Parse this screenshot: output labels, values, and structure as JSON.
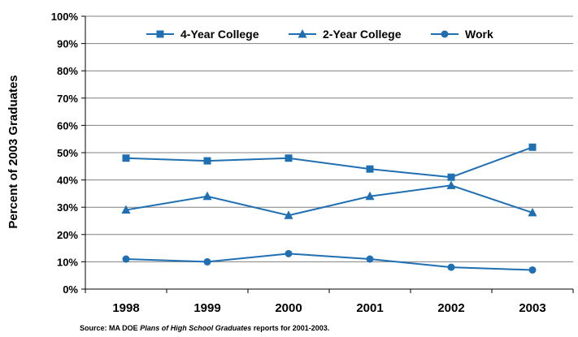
{
  "chart_data": {
    "type": "line",
    "title": "",
    "xlabel": "",
    "ylabel": "Percent of 2003 Graduates",
    "ylim": [
      0,
      100
    ],
    "yticks": [
      "0%",
      "10%",
      "20%",
      "30%",
      "40%",
      "50%",
      "60%",
      "70%",
      "80%",
      "90%",
      "100%"
    ],
    "categories": [
      "1998",
      "1999",
      "2000",
      "2001",
      "2002",
      "2003"
    ],
    "grid": true,
    "legend_position": "top",
    "series": [
      {
        "name": "4-Year College",
        "marker": "square",
        "color": "#1f6fb2",
        "values": [
          48,
          47,
          48,
          44,
          41,
          52
        ]
      },
      {
        "name": "2-Year College",
        "marker": "triangle",
        "color": "#1f6fb2",
        "values": [
          29,
          34,
          27,
          34,
          38,
          28
        ]
      },
      {
        "name": "Work",
        "marker": "circle",
        "color": "#1f6fb2",
        "values": [
          11,
          10,
          13,
          11,
          8,
          7
        ]
      }
    ]
  },
  "source": {
    "prefix": "Source:  MA DOE ",
    "italic": "Plans of High School Graduates",
    "suffix": " reports for 2001-2003."
  }
}
